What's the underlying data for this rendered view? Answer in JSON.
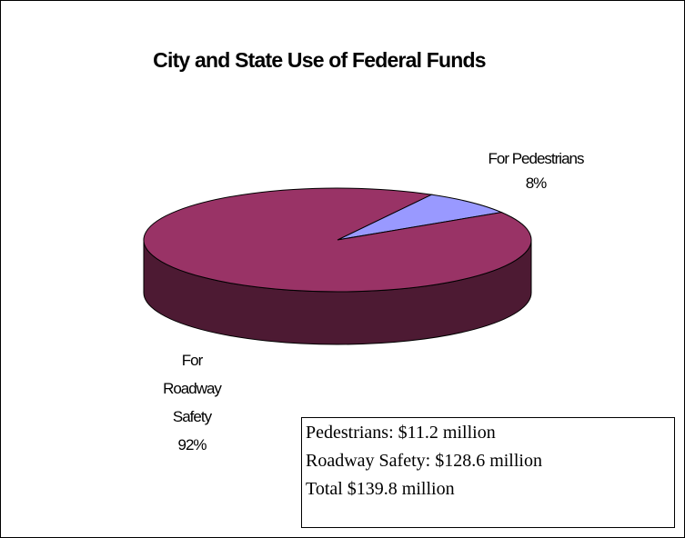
{
  "chart_data": {
    "type": "pie",
    "title": "City and State Use of Federal Funds",
    "categories": [
      "For Pedestrians",
      "For Roadway Safety"
    ],
    "values": [
      8,
      92
    ],
    "value_labels": [
      "8%",
      "92%"
    ],
    "colors": [
      "#9999ff",
      "#993366"
    ],
    "annotation": [
      "Pedestrians: $11.2 million",
      "Roadway Safety: $128.6 million",
      "Total $139.8 million"
    ]
  }
}
